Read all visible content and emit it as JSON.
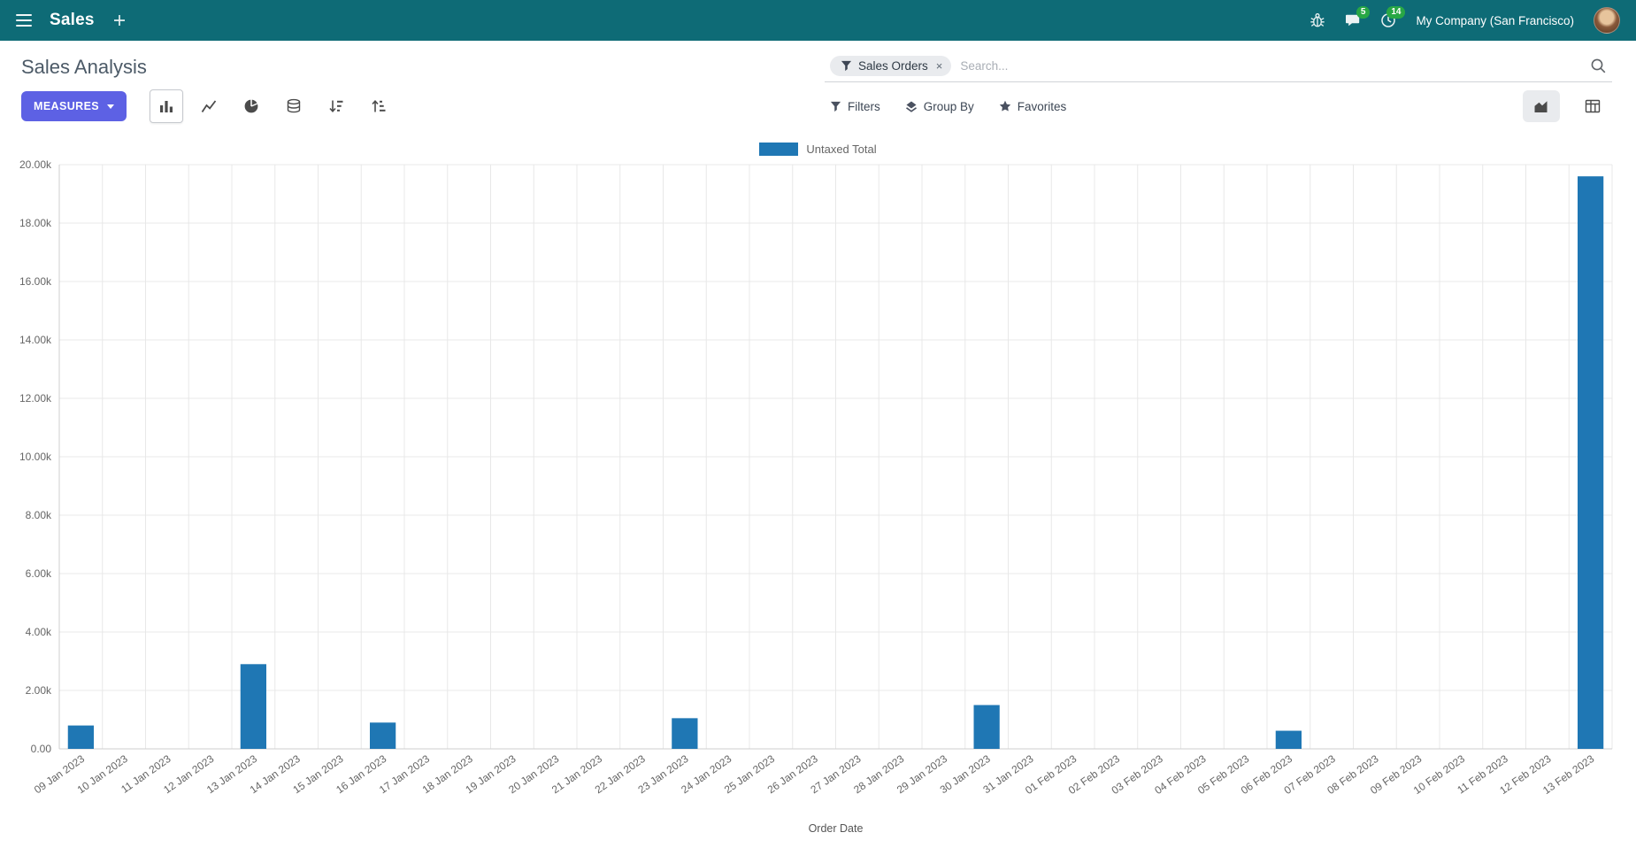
{
  "colors": {
    "navbar_bg": "#0e6b76",
    "primary_button": "#5d61e4",
    "bar": "#1f77b4",
    "badge": "#28a745",
    "icon": "#4b4b4b"
  },
  "navbar": {
    "app_name": "Sales",
    "message_badge": "5",
    "activity_badge": "14",
    "company": "My Company (San Francisco)"
  },
  "control_panel": {
    "title": "Sales Analysis",
    "measures_label": "MEASURES",
    "buttons": {
      "filters": "Filters",
      "group_by": "Group By",
      "favorites": "Favorites"
    },
    "search": {
      "facet_label": "Sales Orders",
      "remove_facet": "×",
      "placeholder": "Search..."
    }
  },
  "chart_data": {
    "type": "bar",
    "title": "",
    "xlabel": "Order Date",
    "ylabel": "",
    "ylim": [
      0,
      20000
    ],
    "y_tick_step": 2000,
    "grid": true,
    "legend": [
      "Untaxed Total"
    ],
    "legend_position": "top",
    "categories": [
      "09 Jan 2023",
      "10 Jan 2023",
      "11 Jan 2023",
      "12 Jan 2023",
      "13 Jan 2023",
      "14 Jan 2023",
      "15 Jan 2023",
      "16 Jan 2023",
      "17 Jan 2023",
      "18 Jan 2023",
      "19 Jan 2023",
      "20 Jan 2023",
      "21 Jan 2023",
      "22 Jan 2023",
      "23 Jan 2023",
      "24 Jan 2023",
      "25 Jan 2023",
      "26 Jan 2023",
      "27 Jan 2023",
      "28 Jan 2023",
      "29 Jan 2023",
      "30 Jan 2023",
      "31 Jan 2023",
      "01 Feb 2023",
      "02 Feb 2023",
      "03 Feb 2023",
      "04 Feb 2023",
      "05 Feb 2023",
      "06 Feb 2023",
      "07 Feb 2023",
      "08 Feb 2023",
      "09 Feb 2023",
      "10 Feb 2023",
      "11 Feb 2023",
      "12 Feb 2023",
      "13 Feb 2023"
    ],
    "series": [
      {
        "name": "Untaxed Total",
        "color": "#1f77b4",
        "values": [
          800,
          0,
          0,
          0,
          2900,
          0,
          0,
          900,
          0,
          0,
          0,
          0,
          0,
          0,
          1050,
          0,
          0,
          0,
          0,
          0,
          0,
          1500,
          0,
          0,
          0,
          0,
          0,
          0,
          620,
          0,
          0,
          0,
          0,
          0,
          0,
          19600
        ]
      }
    ]
  }
}
